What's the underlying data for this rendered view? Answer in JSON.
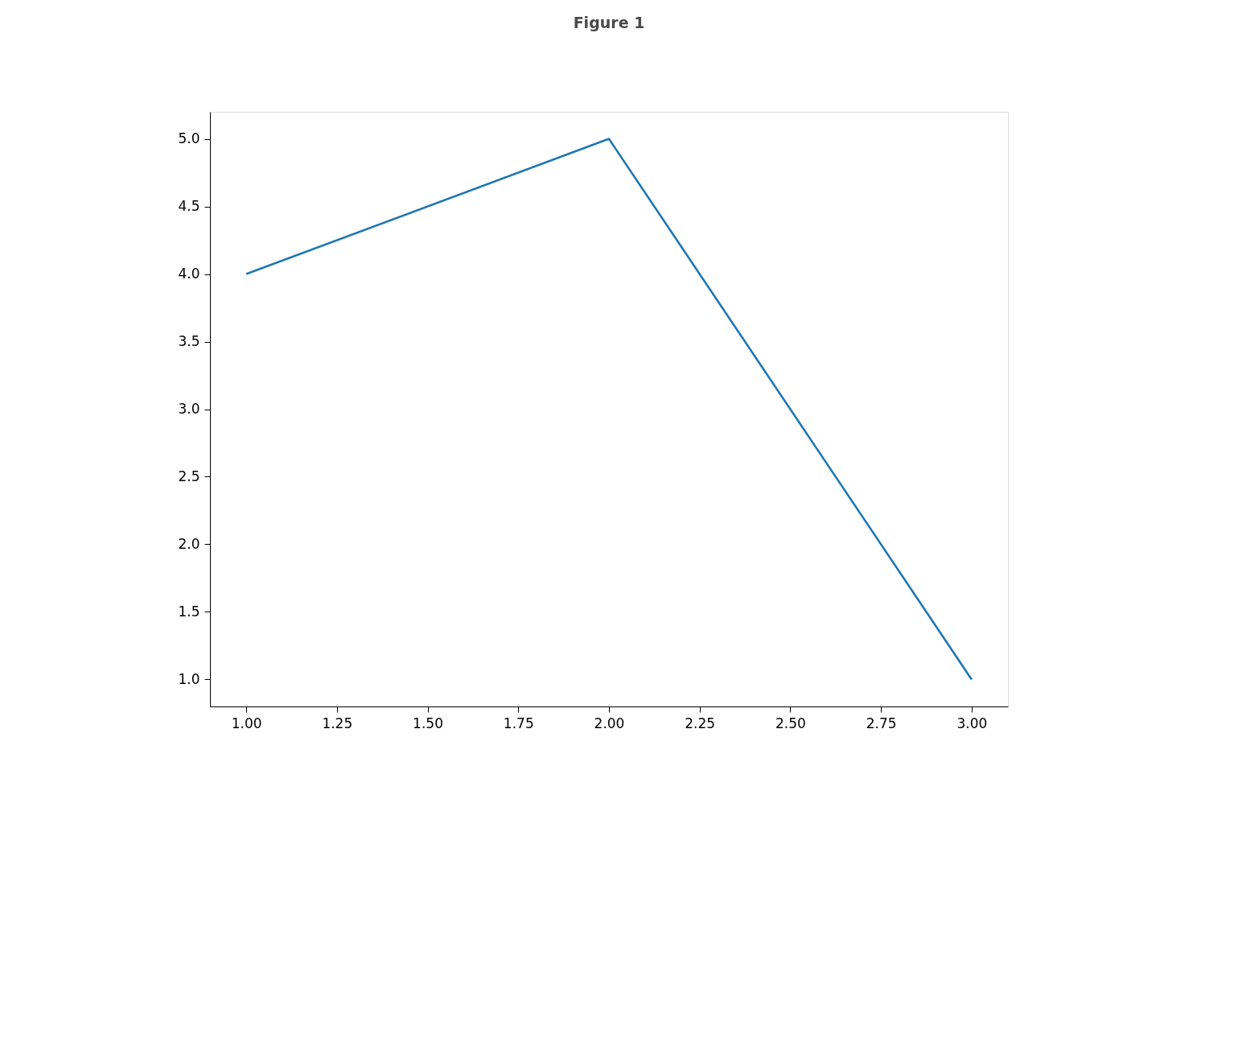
{
  "chart_data": {
    "type": "line",
    "title": "Figure 1",
    "x": [
      1,
      2,
      3
    ],
    "series": [
      {
        "color": "#1f77b4",
        "values": [
          4,
          5,
          1
        ]
      }
    ],
    "xlim": [
      0.9,
      3.1
    ],
    "xticks": [
      {
        "value": 1,
        "label": "1.00"
      },
      {
        "value": 1.25,
        "label": "1.25"
      },
      {
        "value": 1.5,
        "label": "1.50"
      },
      {
        "value": 1.75,
        "label": "1.75"
      },
      {
        "value": 2,
        "label": "2.00"
      },
      {
        "value": 2.25,
        "label": "2.25"
      },
      {
        "value": 2.5,
        "label": "2.50"
      },
      {
        "value": 2.75,
        "label": "2.75"
      },
      {
        "value": 3,
        "label": "3.00"
      }
    ],
    "ylim": [
      0.8,
      5.2
    ],
    "yticks": [
      {
        "value": 1,
        "label": "1.0"
      },
      {
        "value": 1.5,
        "label": "1.5"
      },
      {
        "value": 2,
        "label": "2.0"
      },
      {
        "value": 2.5,
        "label": "2.5"
      },
      {
        "value": 3,
        "label": "3.0"
      },
      {
        "value": 3.5,
        "label": "3.5"
      },
      {
        "value": 4,
        "label": "4.0"
      },
      {
        "value": 4.5,
        "label": "4.5"
      },
      {
        "value": 5,
        "label": "5.0"
      }
    ],
    "grid": false,
    "legend": false,
    "marker": "none",
    "line_style": "solid"
  }
}
